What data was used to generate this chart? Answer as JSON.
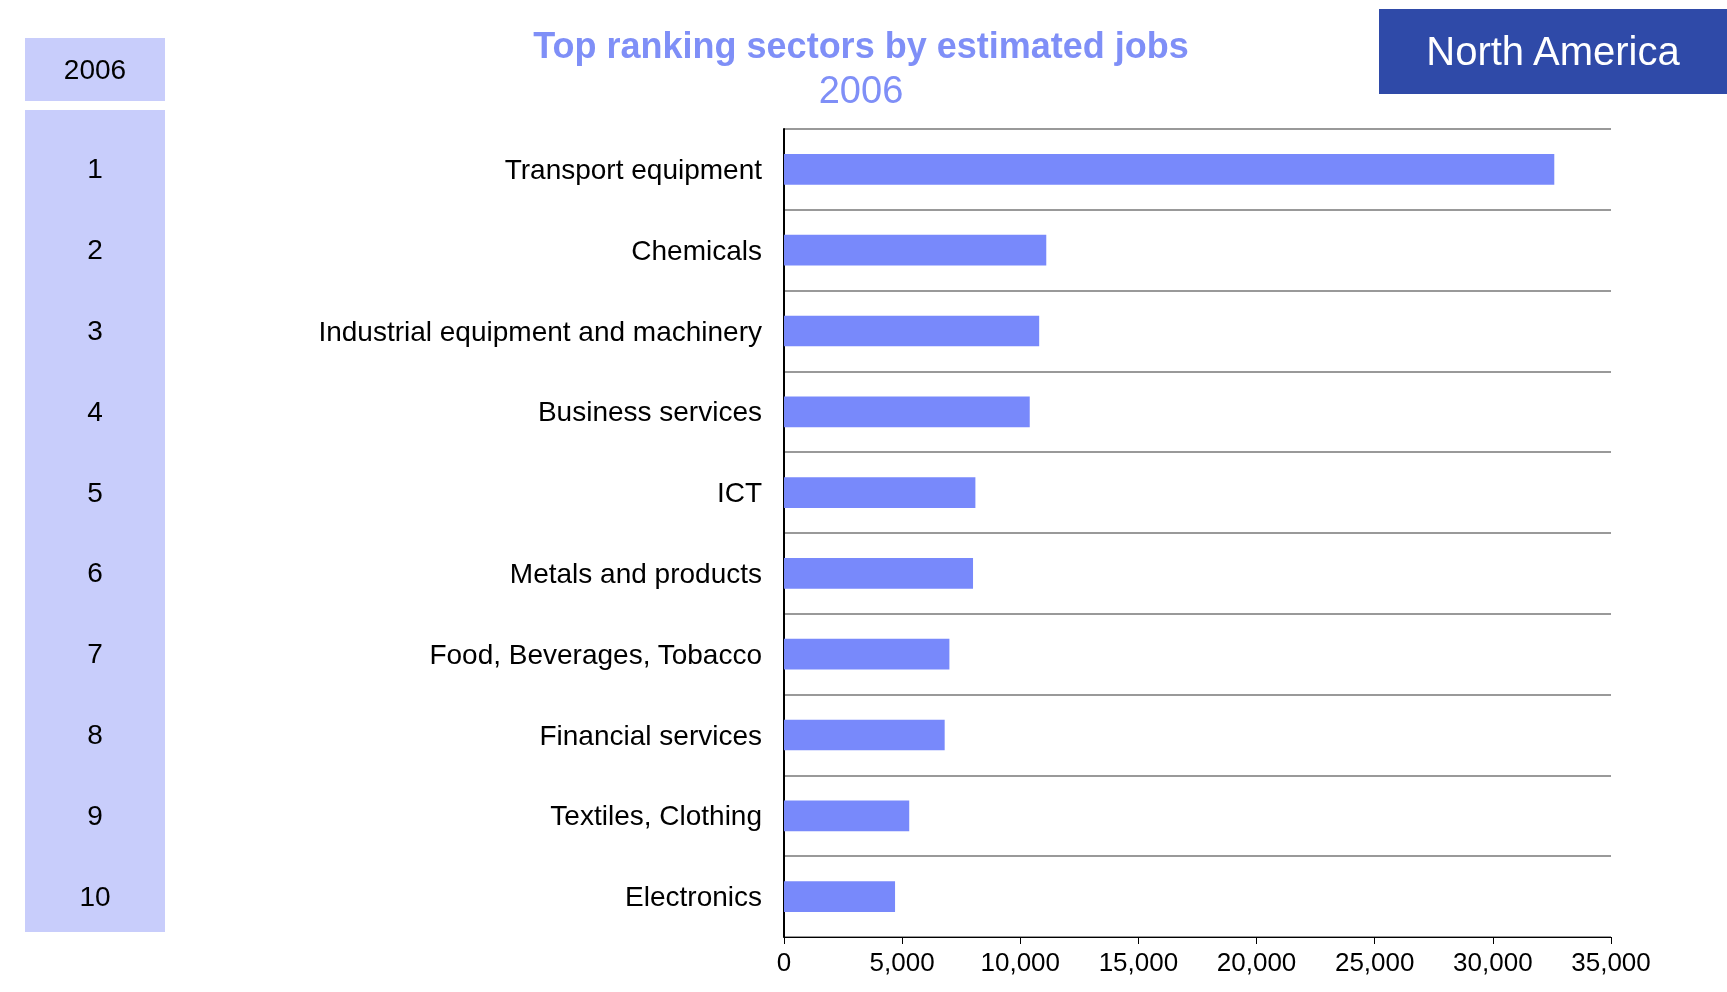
{
  "chart_data": {
    "type": "bar",
    "orientation": "horizontal",
    "title": "Top ranking sectors by estimated jobs",
    "subtitle": "2006",
    "annotations": [
      "North America",
      "2006",
      "1",
      "2",
      "3",
      "4",
      "5",
      "6",
      "7",
      "8",
      "9",
      "10"
    ],
    "categories": [
      "Transport equipment",
      "Chemicals",
      "Industrial equipment and machinery",
      "Business services",
      "ICT",
      "Metals and products",
      "Food, Beverages, Tobacco",
      "Financial services",
      "Textiles, Clothing",
      "Electronics"
    ],
    "values": [
      32600,
      11100,
      10800,
      10400,
      8100,
      8000,
      7000,
      6800,
      5300,
      4700
    ],
    "color": "#7889fb",
    "xlim": [
      0,
      35000
    ],
    "xticks": [
      0,
      {
        "value": 5000,
        "label": "5,000"
      },
      {
        "value": 10000,
        "label": "10,000"
      },
      {
        "value": 15000,
        "label": "15,000"
      },
      {
        "value": 20000,
        "label": "20,000"
      },
      {
        "value": 25000,
        "label": "25,000"
      },
      {
        "value": 30000,
        "label": "30,000"
      },
      {
        "value": 35000,
        "label": "35,000"
      }
    ],
    "grid": "y"
  }
}
